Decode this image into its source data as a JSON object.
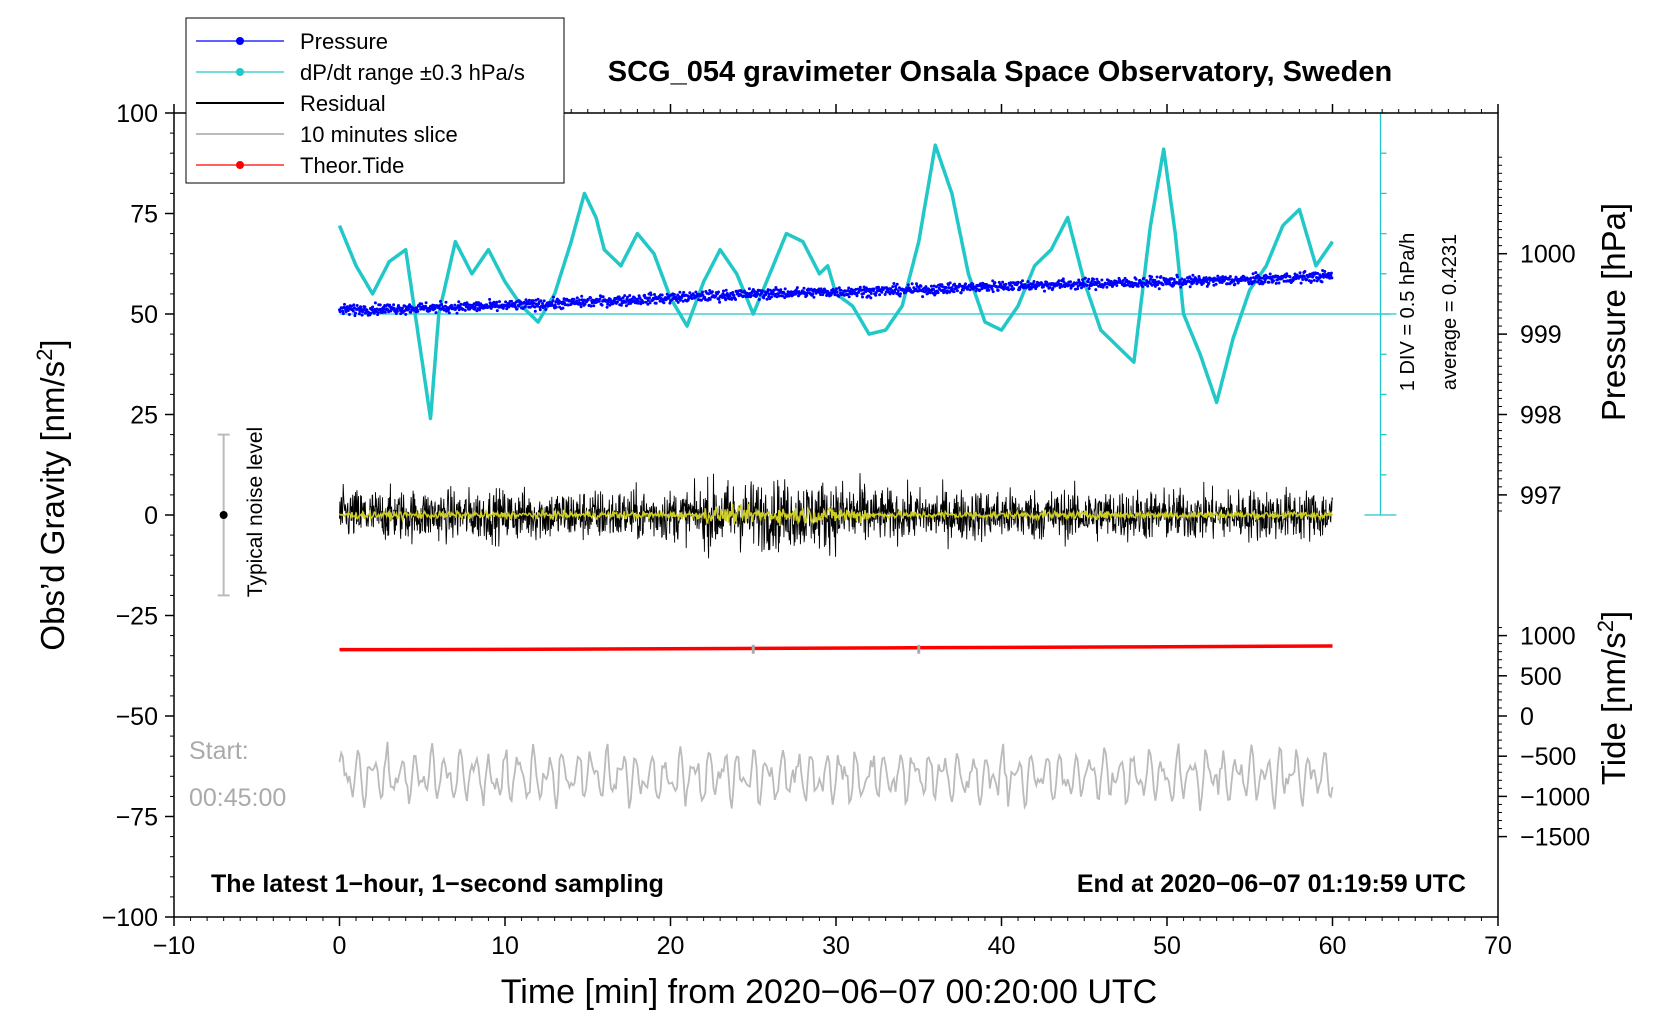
{
  "chart_data": {
    "type": "line",
    "title": "SCG_054 gravimeter Onsala Space Observatory, Sweden",
    "xlabel": "Time [min] from 2020−06−07 00:20:00 UTC",
    "ylabel_left": "Obs’d Gravity [nm/s",
    "ylabel_left_sup": "2",
    "ylabel_left_end": "]",
    "ylabel_pressure": "Pressure [hPa]",
    "ylabel_tide": "Tide [nm/s",
    "ylabel_tide_sup": "2",
    "ylabel_tide_end": "]",
    "xlim": [
      -10,
      70
    ],
    "ylim": [
      -100,
      100
    ],
    "x_ticks": [
      -10,
      0,
      10,
      20,
      30,
      40,
      50,
      60,
      70
    ],
    "x_tick_labels": [
      "−10",
      "0",
      "10",
      "20",
      "30",
      "40",
      "50",
      "60",
      "70"
    ],
    "y_ticks": [
      -100,
      -75,
      -50,
      -25,
      0,
      25,
      50,
      75,
      100
    ],
    "y_tick_labels": [
      "−100",
      "−75",
      "−50",
      "−25",
      "0",
      "25",
      "50",
      "75",
      "100"
    ],
    "pressure_axis": {
      "ticks": [
        997,
        998,
        999,
        1000
      ],
      "tick_labels": [
        "997",
        "998",
        "999",
        "1000"
      ],
      "gravity_at_998": 25,
      "gravity_per_hPa": 20
    },
    "tide_axis": {
      "ticks": [
        -1500,
        -1000,
        -500,
        0,
        500,
        1000
      ],
      "tick_labels": [
        "−1500",
        "−1000",
        "−500",
        "0",
        "500",
        "1000"
      ],
      "gravity_at_zero": -50,
      "gravity_per_unit": 0.02
    },
    "legend": {
      "placement": "top-left",
      "entries": [
        {
          "label": "Pressure",
          "color": "#0000ff",
          "marker": true
        },
        {
          "label": "dP/dt range ±0.3 hPa/s",
          "color": "#22c8c8",
          "marker": true
        },
        {
          "label": "Residual",
          "color": "#000000",
          "marker": false
        },
        {
          "label": "10 minutes slice",
          "color": "#bbbbbb",
          "marker": false
        },
        {
          "label": "Theor.Tide",
          "color": "#ff0000",
          "marker": true
        }
      ]
    },
    "annotations": {
      "noise_label": "Typical noise level",
      "noise_range": [
        -20,
        20
      ],
      "noise_x": -7,
      "div_label": "1 DIV = 0.5 hPa/h",
      "average_label": "average = 0.4231",
      "dpdt_axis_x": 62.9,
      "dpdt_axis_range": [
        0,
        100
      ],
      "dpdt_tick_step": 10,
      "dpdt_baseline": 50,
      "start_label": "Start:",
      "start_time": "00:45:00",
      "bottom_left": "The latest 1−hour, 1−second sampling",
      "bottom_right": "End at 2020−06−07 01:19:59 UTC"
    },
    "series": [
      {
        "name": "dP/dt",
        "color": "#22c8c8",
        "x": [
          0,
          1,
          2,
          3,
          4,
          5,
          5.5,
          6,
          7,
          8,
          9,
          10,
          11,
          12,
          13,
          14,
          14.8,
          15.5,
          16,
          17,
          18,
          19,
          20,
          21,
          22,
          23,
          24,
          25,
          26,
          27,
          28,
          29,
          29.5,
          30,
          31,
          32,
          33,
          34,
          35,
          36,
          37,
          38,
          39,
          40,
          41,
          42,
          43,
          44,
          45,
          46,
          47,
          48,
          49,
          49.8,
          50.5,
          51,
          52,
          53,
          54,
          55,
          56,
          57,
          58,
          59,
          60
        ],
        "y": [
          72,
          62,
          55,
          63,
          66,
          38,
          24,
          50,
          68,
          60,
          66,
          58,
          52,
          48,
          55,
          68,
          80,
          74,
          66,
          62,
          70,
          65,
          54,
          47,
          58,
          66,
          60,
          50,
          60,
          70,
          68,
          60,
          62,
          55,
          52,
          45,
          46,
          52,
          68,
          92,
          80,
          60,
          48,
          46,
          52,
          62,
          66,
          74,
          58,
          46,
          42,
          38,
          72,
          91,
          70,
          50,
          40,
          28,
          44,
          56,
          62,
          72,
          76,
          62,
          68
        ]
      },
      {
        "name": "Pressure",
        "color": "#0000ff",
        "x": [
          0,
          5,
          10,
          15,
          20,
          25,
          30,
          35,
          40,
          45,
          50,
          55,
          60
        ],
        "y": [
          51,
          51.5,
          52,
          53,
          54,
          55,
          55.5,
          56,
          57,
          57.5,
          58,
          58.5,
          59.5
        ]
      },
      {
        "name": "Residual",
        "color": "#000000",
        "x": [
          0,
          60
        ],
        "y": [
          0,
          0
        ],
        "amplitude": 6
      },
      {
        "name": "Smoothed residual",
        "color": "#cccc22",
        "x": [
          0,
          60
        ],
        "y": [
          0,
          0
        ],
        "amplitude": 1.6
      },
      {
        "name": "Theor.Tide",
        "color": "#ff0000",
        "x": [
          0,
          12,
          24,
          36,
          48,
          60
        ],
        "y": [
          -33.5,
          -33.4,
          -33.2,
          -33.0,
          -32.8,
          -32.6
        ]
      },
      {
        "name": "10 minutes slice",
        "color": "#bbbbbb",
        "x": [
          0,
          60
        ],
        "y": [
          -65,
          -65
        ],
        "amplitude": 8
      }
    ],
    "slice_markers": [
      25,
      35
    ]
  }
}
